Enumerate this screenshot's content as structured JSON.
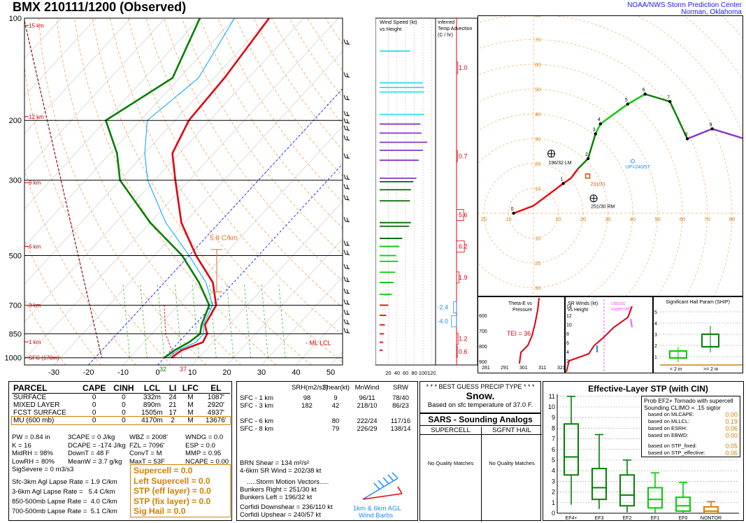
{
  "header": {
    "title": "BMX  210111/1200  (Observed)",
    "agency_line1": "NOAA/NWS Storm Prediction Center",
    "agency_line2": "Norman, Oklahoma"
  },
  "colors": {
    "temp": "#e0000f",
    "dewpoint": "#008000",
    "wetbulb": "#00a0ff",
    "parcel": "#ff3333",
    "hodo_accent": "#9966dd",
    "orange_text": "#d08000"
  },
  "chart_data": [
    {
      "type": "line",
      "name": "skew-t",
      "pressure_ticks": [
        100,
        200,
        300,
        500,
        700,
        850,
        1000
      ],
      "temp_ticks": [
        -30,
        -20,
        -10,
        0,
        10,
        20,
        30,
        40,
        50
      ],
      "height_labels": [
        {
          "p": 105,
          "label": "15 km"
        },
        {
          "p": 195,
          "label": "12 km"
        },
        {
          "p": 305,
          "label": "9 km"
        },
        {
          "p": 470,
          "label": "6 km"
        },
        {
          "p": 700,
          "label": "3 km"
        },
        {
          "p": 898,
          "label": "1 km"
        },
        {
          "p": 998,
          "label": "SFC (178m)"
        }
      ],
      "temperature": [
        [
          1000,
          2
        ],
        [
          950,
          3
        ],
        [
          900,
          7
        ],
        [
          850,
          6
        ],
        [
          800,
          3
        ],
        [
          700,
          1
        ],
        [
          600,
          -6
        ],
        [
          500,
          -18
        ],
        [
          400,
          -31
        ],
        [
          300,
          -44
        ],
        [
          250,
          -52
        ],
        [
          200,
          -56
        ],
        [
          150,
          -57
        ],
        [
          100,
          -60
        ]
      ],
      "dewpoint": [
        [
          1000,
          0
        ],
        [
          950,
          1
        ],
        [
          900,
          3
        ],
        [
          850,
          4
        ],
        [
          800,
          2
        ],
        [
          700,
          -1
        ],
        [
          600,
          -10
        ],
        [
          500,
          -22
        ],
        [
          400,
          -40
        ],
        [
          300,
          -60
        ],
        [
          250,
          -68
        ],
        [
          200,
          -80
        ],
        [
          150,
          -72
        ],
        [
          100,
          -80
        ]
      ],
      "sfc_temp_label": "37",
      "sfc_dew_label": "32",
      "lapse_label": "5.9 C/km",
      "ml_lcl_label": "- ML LCL"
    },
    {
      "type": "bar",
      "name": "wind-speed-vs-height",
      "title": "Wind Speed (kt) vs Height",
      "x_ticks": [
        "20",
        "40",
        "60",
        "80",
        "100",
        "120"
      ],
      "bars": [
        {
          "p": 125,
          "v": 70,
          "c": "#33ddee"
        },
        {
          "p": 155,
          "v": 100,
          "c": "#33ddee"
        },
        {
          "p": 160,
          "v": 102,
          "c": "#33ddee"
        },
        {
          "p": 165,
          "v": 103,
          "c": "#33ddee"
        },
        {
          "p": 192,
          "v": 103,
          "c": "#33ddee"
        },
        {
          "p": 205,
          "v": 94,
          "c": "#8833cc"
        },
        {
          "p": 218,
          "v": 97,
          "c": "#8833cc"
        },
        {
          "p": 232,
          "v": 110,
          "c": "#8833cc"
        },
        {
          "p": 245,
          "v": 100,
          "c": "#8833cc"
        },
        {
          "p": 262,
          "v": 90,
          "c": "#8833cc"
        },
        {
          "p": 296,
          "v": 85,
          "c": "#8833cc"
        },
        {
          "p": 303,
          "v": 78,
          "c": "#006600"
        },
        {
          "p": 320,
          "v": 72,
          "c": "#006600"
        },
        {
          "p": 345,
          "v": 70,
          "c": "#006600"
        },
        {
          "p": 400,
          "v": 72,
          "c": "#006600"
        },
        {
          "p": 410,
          "v": 68,
          "c": "#006600"
        },
        {
          "p": 445,
          "v": 52,
          "c": "#006600"
        },
        {
          "p": 470,
          "v": 45,
          "c": "#00cc00"
        },
        {
          "p": 500,
          "v": 38,
          "c": "#00cc00"
        },
        {
          "p": 520,
          "v": 42,
          "c": "#00cc00"
        },
        {
          "p": 560,
          "v": 36,
          "c": "#00cc00"
        },
        {
          "p": 600,
          "v": 32,
          "c": "#00cc00"
        },
        {
          "p": 650,
          "v": 28,
          "c": "#00cc00"
        },
        {
          "p": 700,
          "v": 20,
          "c": "#ee0000"
        },
        {
          "p": 750,
          "v": 15,
          "c": "#ee0000"
        },
        {
          "p": 800,
          "v": 12,
          "c": "#ee0000"
        },
        {
          "p": 850,
          "v": 10,
          "c": "#ee0000"
        },
        {
          "p": 900,
          "v": 8,
          "c": "#ee0000"
        },
        {
          "p": 950,
          "v": 7,
          "c": "#ee0000"
        }
      ]
    },
    {
      "type": "line",
      "name": "inferred-temp-advection",
      "title": "Inferred Temp Advection (C / hr)",
      "labels": [
        {
          "p": 140,
          "label": "1.0"
        },
        {
          "p": 255,
          "label": "0.7"
        },
        {
          "p": 380,
          "label": "5.6"
        },
        {
          "p": 470,
          "label": "6.2"
        },
        {
          "p": 580,
          "label": "1.9"
        },
        {
          "p": 710,
          "label": "-2.4"
        },
        {
          "p": 780,
          "label": "-4.0"
        },
        {
          "p": 880,
          "label": "1.2"
        },
        {
          "p": 960,
          "label": "0.6"
        }
      ]
    },
    {
      "type": "line",
      "name": "hodograph",
      "x_ticks": [
        10,
        20,
        30,
        40,
        50,
        60,
        70,
        80,
        90,
        100
      ],
      "y_ticks": [
        10,
        20,
        30,
        40,
        50,
        60,
        70,
        80,
        90,
        100
      ],
      "ring_labels_left": [
        "100",
        "90",
        "80",
        "70",
        "60",
        "50",
        "40",
        "30",
        "20",
        "10"
      ],
      "points": [
        {
          "u": -8,
          "v": 0,
          "label": "0",
          "c": "#ee0000"
        },
        {
          "u": 0,
          "v": 3,
          "label": "",
          "c": "#ee0000"
        },
        {
          "u": 12,
          "v": 12,
          "label": "1",
          "c": "#ee0000"
        },
        {
          "u": 15,
          "v": 14,
          "label": "",
          "c": "#ee0000"
        },
        {
          "u": 18,
          "v": 18,
          "label": "",
          "c": "#ee0000"
        },
        {
          "u": 22,
          "v": 22,
          "label": "2",
          "c": "#008000"
        },
        {
          "u": 25,
          "v": 32,
          "label": "3",
          "c": "#008000"
        },
        {
          "u": 27,
          "v": 36,
          "label": "4",
          "c": "#00cc00"
        },
        {
          "u": 38,
          "v": 44,
          "label": "5",
          "c": "#00cc00"
        },
        {
          "u": 45,
          "v": 48,
          "label": "6",
          "c": "#00cc00"
        },
        {
          "u": 55,
          "v": 45,
          "label": "7",
          "c": "#008000"
        },
        {
          "u": 62,
          "v": 30,
          "label": "8",
          "c": "#008000"
        },
        {
          "u": 72,
          "v": 34,
          "label": "9",
          "c": "#8833cc"
        },
        {
          "u": 85,
          "v": 30,
          "label": "",
          "c": "#8833cc"
        }
      ],
      "lm_label": "196/32 LM",
      "rm_label": "251/30 RM",
      "up_label": "UP=240/57",
      "dn_label": "DN=236/110",
      "mean_label": "231/31"
    },
    {
      "type": "line",
      "name": "theta-e-vs-pressure",
      "title": "Theta-E vs Pressure",
      "y_ticks": [
        "600",
        "700",
        "800",
        "900"
      ],
      "x_ticks": [
        "281",
        "291",
        "301",
        "311",
        "321"
      ],
      "tei_label": "TEI = 36"
    },
    {
      "type": "line",
      "name": "sr-winds-vs-height",
      "title": "SR Winds (kt) vs Height",
      "y_ticks": [
        "14",
        "12",
        "10",
        "8",
        "6",
        "4",
        "2"
      ],
      "legend": "classic supercell"
    },
    {
      "type": "bar",
      "name": "significant-hail-param",
      "title": "Significant Hail Param (SHIP)",
      "y_ticks": [
        "5",
        "4",
        "3",
        "2",
        "1"
      ],
      "x_labels": [
        "< 2 in",
        ">= 2 in"
      ]
    },
    {
      "type": "box",
      "name": "effective-layer-stp",
      "title": "Effective-Layer STP (with CIN)",
      "y_ticks": [
        "0",
        "1",
        "2",
        "3",
        "4",
        "5",
        "6",
        "7",
        "8",
        "9",
        "10",
        "11"
      ],
      "categories": [
        "EF4+",
        "EF3",
        "EF2",
        "EF1",
        "EF0",
        "NONTOR"
      ],
      "boxes": [
        {
          "lo": 0.8,
          "q1": 3.6,
          "med": 5.3,
          "q3": 8.4,
          "hi": 11.0,
          "c": "#008000"
        },
        {
          "lo": 0.4,
          "q1": 1.3,
          "med": 2.4,
          "q3": 4.2,
          "hi": 7.4,
          "c": "#008000"
        },
        {
          "lo": 0.1,
          "q1": 0.7,
          "med": 1.7,
          "q3": 3.6,
          "hi": 5.0,
          "c": "#008000"
        },
        {
          "lo": 0.0,
          "q1": 0.5,
          "med": 1.3,
          "q3": 2.4,
          "hi": 3.8,
          "c": "#00cc00"
        },
        {
          "lo": 0.0,
          "q1": 0.2,
          "med": 0.7,
          "q3": 1.5,
          "hi": 2.9,
          "c": "#00cc00"
        },
        {
          "lo": 0.0,
          "q1": 0.0,
          "med": 0.2,
          "q3": 0.6,
          "hi": 1.1,
          "c": "#d08000"
        }
      ],
      "prob_line1": "Prob EF2+ Tornado with supercell",
      "prob_line2": "Sounding CLIMO = .15 sigtor",
      "prob_rows": [
        {
          "label": "based on MLCAPE:",
          "value": "0.00"
        },
        {
          "label": "based on MLLCL:",
          "value": "0.19"
        },
        {
          "label": "based on ESRH:",
          "value": "0.06"
        },
        {
          "label": "based on EBWD:",
          "value": "0.00"
        },
        {
          "label": "based on STP_fixed:",
          "value": "0.05"
        },
        {
          "label": "based on STP_effective:",
          "value": "0.06"
        }
      ]
    }
  ],
  "parcel_table": {
    "headers": [
      "PARCEL",
      "CAPE",
      "CINH",
      "LCL",
      "LI",
      "LFC",
      "EL"
    ],
    "rows": [
      [
        "SURFACE",
        "0",
        "0",
        "332m",
        "24",
        "M",
        "1087'"
      ],
      [
        "MIXED LAYER",
        "0",
        "0",
        "890m",
        "21",
        "M",
        "2920'"
      ],
      [
        "FCST SURFACE",
        "0",
        "0",
        "1505m",
        "17",
        "M",
        "4937'"
      ],
      [
        "MU   (600 mb)",
        "0",
        "0",
        "4170m",
        "2",
        "M",
        "13676'"
      ]
    ]
  },
  "indices": [
    [
      "PW = 0.84 in",
      "3CAPE = 0 J/kg",
      "WBZ = 2008'",
      "WNDG = 0.0"
    ],
    [
      "K = 16",
      "DCAPE = -174 J/kg",
      "FZL = 7096'",
      "ESP = 0.0"
    ],
    [
      "MidRH = 98%",
      "DownT = 48 F",
      "ConvT = M",
      "MMP = 0.95"
    ],
    [
      "LowRH = 80%",
      "MeanW = 3.7 g/kg",
      "MaxT = 53F",
      "NCAPE = 0.00"
    ],
    [
      "SigSevere = 0 m3/s3",
      "",
      "",
      ""
    ]
  ],
  "lapse_rates": [
    "Sfc-3km Agl Lapse Rate = 1.9 C/km",
    "3-6km Agl Lapse Rate =   5.4 C/km",
    "850-500mb Lapse Rate =  4.0 C/km",
    "700-500mb Lapse Rate =  5.1 C/km"
  ],
  "composite_params": [
    "Supercell = 0.0",
    "Left Supercell = 0.0",
    "STP (eff layer) = 0.0",
    "STP (fix layer) = 0.0",
    "Sig Hail = 0.0"
  ],
  "kinematics": {
    "headers": [
      "SRH(m2/s2)",
      "Shear(kt)",
      "MnWind",
      "SRW"
    ],
    "rows": [
      [
        "SFC - 1 km",
        "98",
        "9",
        "96/11",
        "78/40"
      ],
      [
        "SFC - 3 km",
        "182",
        "42",
        "218/10",
        "86/23"
      ],
      [
        "",
        "",
        "",
        "",
        ""
      ],
      [
        "SFC - 6 km",
        "",
        "80",
        "222/24",
        "117/16"
      ],
      [
        "SFC - 8 km",
        "",
        "79",
        "226/29",
        "138/14"
      ]
    ],
    "brn_shear": "BRN Shear = 134 m²/s²",
    "sr_wind": "4-6km SR Wind =         202/38 kt",
    "storm_motion_title": ".....Storm Motion Vectors.....",
    "bunkers_right": "Bunkers Right =          251/30 kt",
    "bunkers_left": "Bunkers Left =            196/32 kt",
    "corfidi_down": "Corfidi Downshear = 236/110 kt",
    "corfidi_up": "Corfidi Upshear =       240/57 kt",
    "barb_caption1": "1km & 6km AGL",
    "barb_caption2": "Wind Barbs"
  },
  "precip": {
    "title": "* * * BEST GUESS PRECIP TYPE * * *",
    "value": "Snow.",
    "basis": "Based on sfc temperature of 37.0 F."
  },
  "sars": {
    "title": "SARS - Sounding Analogs",
    "col1": "SUPERCELL",
    "col2": "SGFNT HAIL",
    "msg1": "No Quality Matches",
    "msg2": "No Quality Matches"
  }
}
